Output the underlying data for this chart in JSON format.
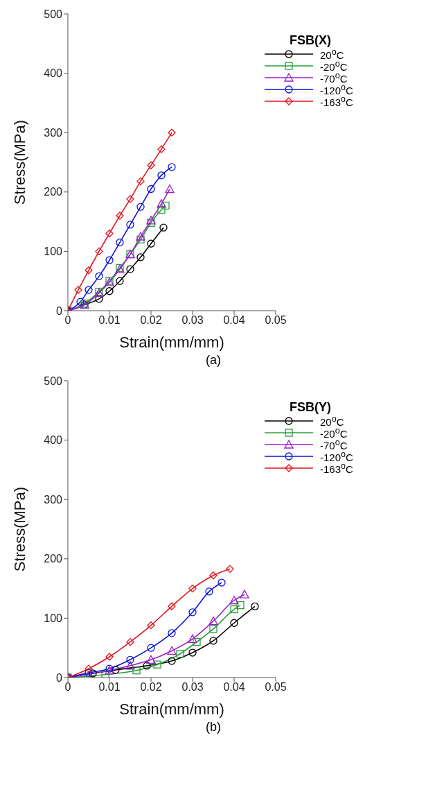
{
  "chart_data": [
    {
      "type": "line",
      "title": "(a)",
      "xlabel": "Strain(mm/mm)",
      "ylabel": "Stress(MPa)",
      "legend_title": "FSB(X)",
      "legend": "top right",
      "grid": false,
      "line_style": "solid",
      "xlim": [
        0,
        0.05
      ],
      "xticks": [
        0,
        0.01,
        0.02,
        0.03,
        0.04,
        0.05
      ],
      "ylim": [
        0,
        500
      ],
      "yticks": [
        0,
        100,
        200,
        300,
        400,
        500
      ],
      "series": [
        {
          "name": "20$^{o}$C",
          "color": "#000000",
          "marker": "circle",
          "x": [
            0,
            0.004,
            0.0075,
            0.01,
            0.0125,
            0.015,
            0.0175,
            0.02,
            0.023
          ],
          "values": [
            0,
            10,
            20,
            33,
            50,
            70,
            90,
            113,
            140
          ]
        },
        {
          "name": "-20$^{o}$C",
          "color": "#2a9d3a",
          "marker": "square",
          "x": [
            0,
            0.004,
            0.0075,
            0.01,
            0.0125,
            0.015,
            0.0175,
            0.02,
            0.0225,
            0.0235
          ],
          "values": [
            0,
            12,
            32,
            50,
            72,
            95,
            120,
            148,
            170,
            177
          ]
        },
        {
          "name": "-70$^{o}$C",
          "color": "#9b1fc9",
          "marker": "triangle",
          "x": [
            0,
            0.004,
            0.0075,
            0.01,
            0.0125,
            0.015,
            0.0175,
            0.02,
            0.0225,
            0.0245
          ],
          "values": [
            0,
            10,
            30,
            48,
            70,
            95,
            125,
            152,
            180,
            205
          ]
        },
        {
          "name": "-120$^{o}$C",
          "color": "#0a14d6",
          "marker": "circle",
          "x": [
            0,
            0.003,
            0.005,
            0.0075,
            0.01,
            0.0125,
            0.015,
            0.0175,
            0.02,
            0.0225,
            0.025
          ],
          "values": [
            0,
            15,
            35,
            58,
            85,
            115,
            145,
            175,
            205,
            228,
            242
          ]
        },
        {
          "name": "-163$^{o}$C",
          "color": "#e3121b",
          "marker": "diamond",
          "x": [
            0,
            0.0025,
            0.005,
            0.0075,
            0.01,
            0.0125,
            0.015,
            0.0175,
            0.02,
            0.0225,
            0.025
          ],
          "values": [
            0,
            35,
            68,
            100,
            130,
            160,
            188,
            218,
            245,
            272,
            300
          ]
        }
      ]
    },
    {
      "type": "line",
      "title": "(b)",
      "xlabel": "Strain(mm/mm)",
      "ylabel": "Stress(MPa)",
      "legend_title": "FSB(Y)",
      "legend": "top right",
      "grid": false,
      "line_style": "solid",
      "xlim": [
        0,
        0.05
      ],
      "xticks": [
        0,
        0.01,
        0.02,
        0.03,
        0.04,
        0.05
      ],
      "ylim": [
        0,
        500
      ],
      "yticks": [
        0,
        100,
        200,
        300,
        400,
        500
      ],
      "series": [
        {
          "name": "20$^{o}$C",
          "color": "#000000",
          "marker": "circle",
          "x": [
            0,
            0.006,
            0.0115,
            0.019,
            0.025,
            0.03,
            0.035,
            0.04,
            0.045
          ],
          "values": [
            0,
            7,
            13,
            20,
            28,
            42,
            62,
            92,
            120
          ]
        },
        {
          "name": "-20$^{o}$C",
          "color": "#2a9d3a",
          "marker": "square",
          "x": [
            0,
            0.009,
            0.0165,
            0.0215,
            0.027,
            0.031,
            0.035,
            0.04,
            0.0415
          ],
          "values": [
            0,
            5,
            12,
            22,
            40,
            60,
            82,
            115,
            122
          ]
        },
        {
          "name": "-70$^{o}$C",
          "color": "#9b1fc9",
          "marker": "triangle",
          "x": [
            0,
            0.01,
            0.015,
            0.02,
            0.025,
            0.03,
            0.035,
            0.04,
            0.0425
          ],
          "values": [
            0,
            12,
            20,
            30,
            45,
            65,
            95,
            130,
            140
          ]
        },
        {
          "name": "-120$^{o}$C",
          "color": "#0a14d6",
          "marker": "circle",
          "x": [
            0,
            0.005,
            0.01,
            0.015,
            0.02,
            0.025,
            0.03,
            0.034,
            0.037
          ],
          "values": [
            0,
            8,
            15,
            30,
            50,
            75,
            110,
            145,
            160
          ]
        },
        {
          "name": "-163$^{o}$C",
          "color": "#e3121b",
          "marker": "diamond",
          "x": [
            0,
            0.005,
            0.01,
            0.015,
            0.02,
            0.025,
            0.03,
            0.035,
            0.039
          ],
          "values": [
            0,
            15,
            35,
            60,
            88,
            120,
            150,
            172,
            183
          ]
        }
      ]
    }
  ]
}
